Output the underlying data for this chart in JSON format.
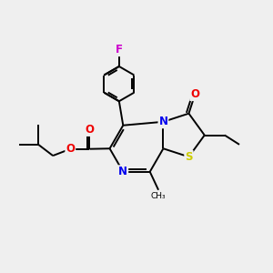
{
  "background_color": "#efefef",
  "bond_color": "#000000",
  "atom_colors": {
    "N": "#0000ee",
    "O": "#ee0000",
    "S": "#cccc00",
    "F": "#cc00cc",
    "C": "#000000"
  },
  "figsize": [
    3.0,
    3.0
  ],
  "dpi": 100
}
